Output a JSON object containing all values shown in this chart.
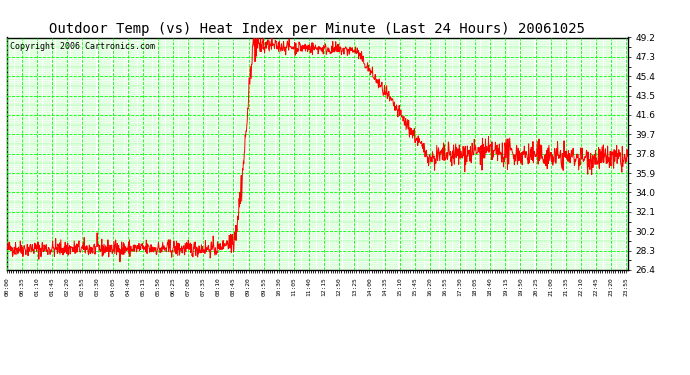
{
  "title": "Outdoor Temp (vs) Heat Index per Minute (Last 24 Hours) 20061025",
  "copyright": "Copyright 2006 Cartronics.com",
  "yticks": [
    26.4,
    28.3,
    30.2,
    32.1,
    34.0,
    35.9,
    37.8,
    39.7,
    41.6,
    43.5,
    45.4,
    47.3,
    49.2
  ],
  "ymin": 26.4,
  "ymax": 49.2,
  "xtick_labels": [
    "00:00",
    "00:35",
    "01:10",
    "01:45",
    "02:20",
    "02:55",
    "03:30",
    "04:05",
    "04:40",
    "05:15",
    "05:50",
    "06:25",
    "07:00",
    "07:35",
    "08:10",
    "08:45",
    "09:20",
    "09:55",
    "10:30",
    "11:05",
    "11:40",
    "12:15",
    "12:50",
    "13:25",
    "14:00",
    "14:35",
    "15:10",
    "15:45",
    "16:20",
    "16:55",
    "17:30",
    "18:05",
    "18:40",
    "19:15",
    "19:50",
    "20:25",
    "21:00",
    "21:35",
    "22:10",
    "22:45",
    "23:20",
    "23:55"
  ],
  "line_color": "#ff0000",
  "grid_color": "#00ff00",
  "bg_color": "#ffffff",
  "plot_bg": "#ffffff",
  "title_fontsize": 10,
  "copyright_fontsize": 6
}
